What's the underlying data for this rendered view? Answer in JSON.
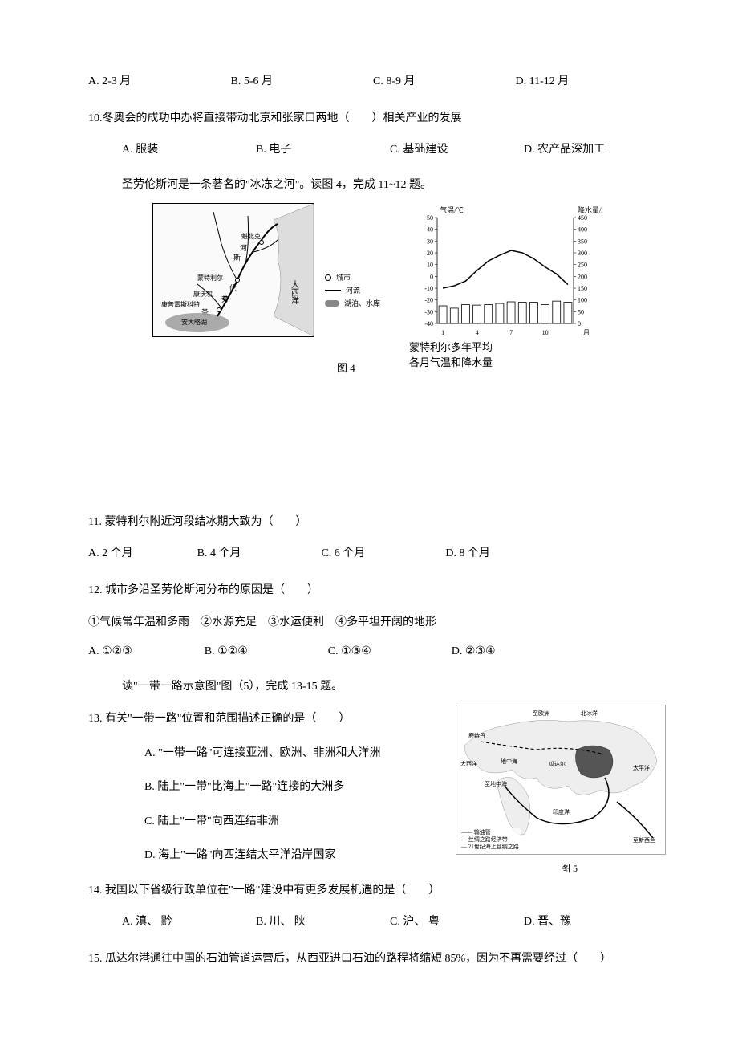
{
  "q9": {
    "options": {
      "A": "A. 2-3 月",
      "B": "B. 5-6 月",
      "C": "C. 8-9 月",
      "D": "D. 11-12 月"
    }
  },
  "q10": {
    "text": "10.冬奥会的成功申办将直接带动北京和张家口两地（　　）相关产业的发展",
    "options": {
      "A": "A. 服装",
      "B": "B. 电子",
      "C": "C. 基础建设",
      "D": "D. 农产品深加工"
    }
  },
  "context_st_lawrence": "圣劳伦斯河是一条著名的\"冰冻之河\"。读图 4，完成 11~12 题。",
  "figure4": {
    "map": {
      "cities": [
        "魁北克",
        "蒙特利尔",
        "康沃尔",
        "康普雷斯科特",
        "安大略湖"
      ],
      "river_label": "圣劳伦斯河",
      "ocean_label": "大西洋",
      "legend": {
        "city": "城市",
        "river": "河流",
        "lake": "湖泊、水库"
      }
    },
    "chart": {
      "type": "climograph",
      "y_left_label": "气温/℃",
      "y_right_label": "降水量/mm",
      "temp_ticks": [
        50,
        40,
        30,
        20,
        10,
        0,
        -10,
        -20,
        -30,
        -40
      ],
      "temp_lim": [
        -40,
        50
      ],
      "precip_ticks": [
        450,
        400,
        350,
        300,
        250,
        200,
        150,
        100,
        50,
        0
      ],
      "precip_lim": [
        0,
        450
      ],
      "x_ticks": [
        1,
        4,
        7,
        10
      ],
      "x_label": "月",
      "temp_values": [
        -10,
        -8,
        -4,
        5,
        13,
        18,
        22,
        20,
        15,
        8,
        2,
        -7
      ],
      "precip_values": [
        75,
        65,
        80,
        78,
        80,
        85,
        92,
        90,
        90,
        80,
        95,
        90
      ],
      "temp_color": "#000000",
      "bar_color": "#ffffff",
      "bar_border": "#000000",
      "grid_color": "#000000",
      "background": "#ffffff"
    },
    "chart_caption_line1": "蒙特利尔多年平均",
    "chart_caption_line2": "各月气温和降水量",
    "label": "图 4"
  },
  "q11": {
    "text": "11. 蒙特利尔附近河段结冰期大致为（　　）",
    "options": {
      "A": "A. 2 个月",
      "B": "B. 4 个月",
      "C": "C. 6 个月",
      "D": "D. 8 个月"
    }
  },
  "q12": {
    "text": "12. 城市多沿圣劳伦斯河分布的原因是（　　）",
    "statements": "①气候常年温和多雨　②水源充足　③水运便利　④多平坦开阔的地形",
    "options": {
      "A": "A. ①②③",
      "B": "B. ①②④",
      "C": "C. ①③④",
      "D": "D. ②③④"
    }
  },
  "context_belt_road": "读\"一带一路示意图\"图（5），完成 13-15 题。",
  "q13": {
    "text": "13. 有关\"一带一路\"位置和范围描述正确的是（　　）",
    "options": {
      "A": "A. \"一带一路\"可连接亚洲、欧洲、非洲和大洋洲",
      "B": "B. 陆上\"一带\"比海上\"一路\"连接的大洲多",
      "C": "C. 陆上\"一带\"向西连结非洲",
      "D": "D. 海上\"一路\"向西连结太平洋沿岸国家"
    }
  },
  "figure5": {
    "label": "图 5",
    "places": [
      "至欧洲",
      "北冰洋",
      "鹿特丹",
      "大西洋",
      "瓜达尔",
      "地中海",
      "至地中海",
      "印度洋",
      "太平洋",
      "至新西兰"
    ],
    "legend": {
      "pipe": "—— 输油管",
      "belt": "--- 丝绸之路经济带",
      "road": "— 21世纪海上丝绸之路"
    },
    "china_fill": "#555555",
    "land_fill": "#eeeeee",
    "sea_fill": "#ffffff"
  },
  "q14": {
    "text": "14. 我国以下省级行政单位在\"一路\"建设中有更多发展机遇的是（　　）",
    "options": {
      "A": "A. 滇、 黔",
      "B": "B. 川、 陕",
      "C": "C. 沪、 粤",
      "D": "D. 晋、豫"
    }
  },
  "q15": {
    "text": "15. 瓜达尔港通往中国的石油管道运营后，从西亚进口石油的路程将缩短 85%，因为不再需要经过（　　）"
  }
}
